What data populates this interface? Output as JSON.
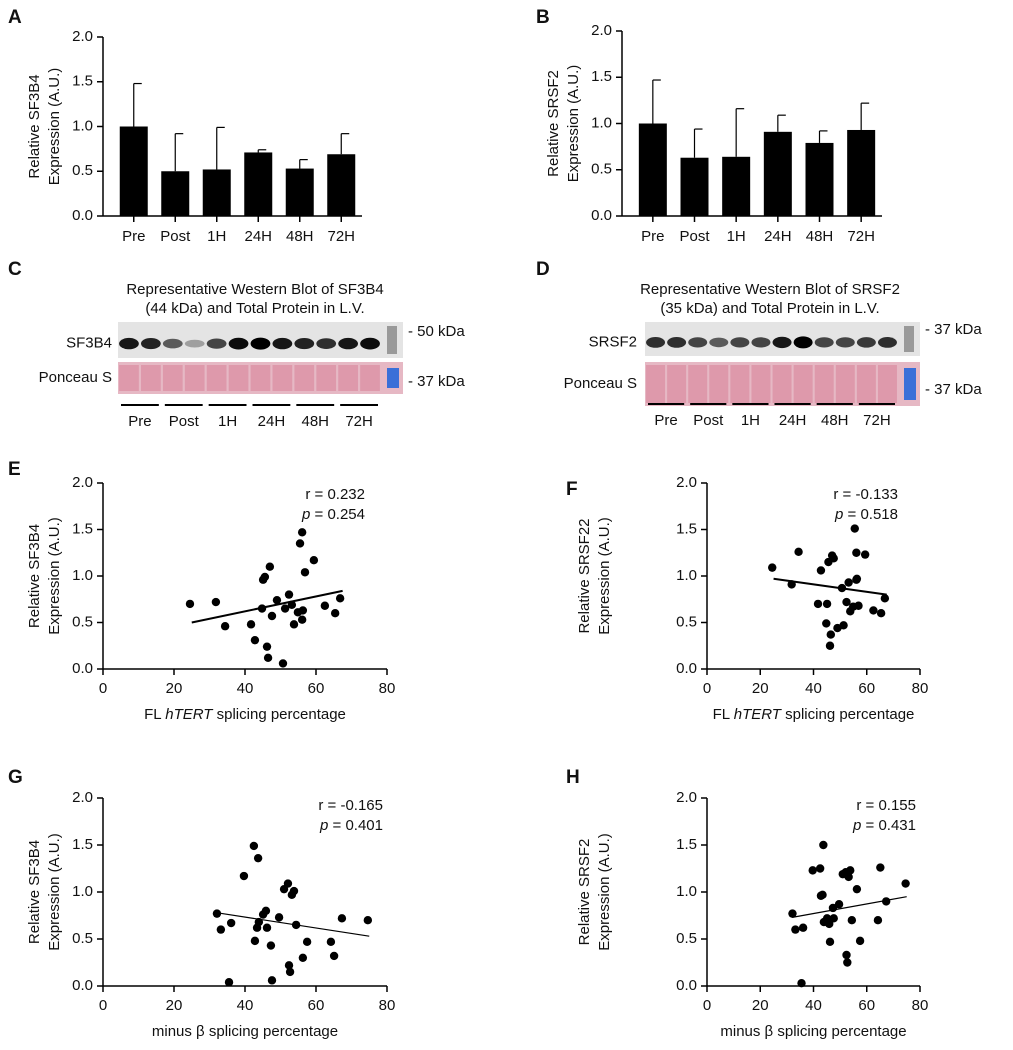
{
  "chart_data": [
    {
      "type": "bar",
      "panel": "A",
      "ylabel": [
        "Relative SF3B4",
        "Expression (A.U.)"
      ],
      "categories": [
        "Pre",
        "Post",
        "1H",
        "24H",
        "48H",
        "72H"
      ],
      "values": [
        1.0,
        0.5,
        0.52,
        0.71,
        0.53,
        0.69
      ],
      "errors": [
        0.48,
        0.42,
        0.47,
        0.03,
        0.1,
        0.23
      ],
      "color": "#000000",
      "ylim": [
        0,
        2
      ],
      "yticks": [
        {
          "value": 0,
          "label": "0.0"
        },
        0.5,
        {
          "value": 1,
          "label": "1.0"
        },
        1.5,
        {
          "value": 2,
          "label": "2.0"
        }
      ]
    },
    {
      "type": "bar",
      "panel": "B",
      "ylabel": [
        "Relative SRSF2",
        "Expression (A.U.)"
      ],
      "categories": [
        "Pre",
        "Post",
        "1H",
        "24H",
        "48H",
        "72H"
      ],
      "values": [
        1.0,
        0.63,
        0.64,
        0.91,
        0.79,
        0.93
      ],
      "errors": [
        0.47,
        0.31,
        0.52,
        0.18,
        0.13,
        0.29
      ],
      "color": "#000000",
      "ylim": [
        0,
        2
      ],
      "yticks": [
        {
          "value": 0,
          "label": "0.0"
        },
        0.5,
        {
          "value": 1,
          "label": "1.0"
        },
        1.5,
        {
          "value": 2,
          "label": "2.0"
        }
      ]
    },
    {
      "type": "scatter",
      "panel": "E",
      "ylabel": [
        "Relative SF3B4",
        "Expression (A.U.)"
      ],
      "xlabel": [
        "FL ",
        "hTERT",
        " splicing percentage"
      ],
      "x": [
        24.5,
        31.8,
        34.4,
        41.7,
        42.8,
        44.8,
        45.1,
        45.6,
        47.0,
        46.2,
        46.5,
        47.6,
        49.0,
        50.7,
        51.3,
        52.4,
        53.2,
        53.8,
        54.9,
        55.5,
        56.1,
        56.1,
        56.3,
        56.9,
        59.4,
        62.5,
        65.4,
        66.8
      ],
      "values": [
        0.7,
        0.72,
        0.46,
        0.48,
        0.31,
        0.65,
        0.96,
        0.99,
        1.1,
        0.24,
        0.12,
        0.57,
        0.74,
        0.06,
        0.65,
        0.8,
        0.69,
        0.48,
        0.61,
        1.35,
        1.47,
        0.53,
        0.63,
        1.04,
        1.17,
        0.68,
        0.6,
        0.76
      ],
      "trendline": {
        "x": [
          25,
          67.5
        ],
        "values": [
          0.5,
          0.84
        ]
      },
      "annotation": {
        "r": "r = 0.232",
        "p_symbol": "p",
        "p": " = 0.254"
      },
      "color": "#000000",
      "xlim": [
        0,
        80
      ],
      "xticks": [
        0,
        20,
        40,
        60,
        80
      ],
      "ylim": [
        0,
        2
      ],
      "yticks": [
        {
          "value": 0,
          "label": "0.0"
        },
        0.5,
        {
          "value": 1,
          "label": "1.0"
        },
        1.5,
        {
          "value": 2,
          "label": "2.0"
        }
      ]
    },
    {
      "type": "scatter",
      "panel": "F",
      "ylabel": [
        "Relative SRSF22",
        "Expression (A.U.)"
      ],
      "xlabel": [
        "FL ",
        "hTERT",
        " splicing percentage"
      ],
      "x": [
        24.5,
        31.8,
        34.4,
        41.7,
        42.8,
        44.8,
        45.1,
        45.6,
        47.0,
        46.2,
        46.5,
        47.6,
        49.0,
        50.7,
        51.3,
        52.4,
        53.2,
        53.8,
        54.9,
        55.5,
        56.1,
        56.1,
        56.3,
        56.9,
        59.4,
        62.5,
        65.4,
        66.8
      ],
      "values": [
        1.09,
        0.91,
        1.26,
        0.7,
        1.06,
        0.49,
        0.7,
        1.15,
        1.22,
        0.25,
        0.37,
        1.19,
        0.44,
        0.87,
        0.47,
        0.72,
        0.93,
        0.62,
        0.67,
        1.51,
        1.25,
        0.96,
        0.97,
        0.68,
        1.23,
        0.63,
        0.6,
        0.76
      ],
      "trendline": {
        "x": [
          25,
          67.5
        ],
        "values": [
          0.97,
          0.8
        ]
      },
      "annotation": {
        "r": "r = -0.133",
        "p_symbol": "p",
        "p": " = 0.518"
      },
      "color": "#000000",
      "xlim": [
        0,
        80
      ],
      "xticks": [
        0,
        20,
        40,
        60,
        80
      ],
      "ylim": [
        0,
        2
      ],
      "yticks": [
        {
          "value": 0,
          "label": "0.0"
        },
        0.5,
        {
          "value": 1,
          "label": "1.0"
        },
        1.5,
        {
          "value": 2,
          "label": "2.0"
        }
      ]
    },
    {
      "type": "scatter",
      "panel": "G",
      "ylabel": [
        "Relative SF3B4",
        "Expression (A.U.)"
      ],
      "xlabel": [
        "minus β splicing percentage"
      ],
      "x": [
        32.1,
        33.2,
        36.1,
        35.5,
        39.7,
        42.5,
        43.7,
        43.4,
        42.8,
        43.9,
        45.1,
        45.9,
        46.2,
        47.3,
        47.6,
        49.6,
        51.0,
        52.1,
        52.4,
        52.7,
        53.2,
        53.8,
        54.4,
        56.3,
        57.5,
        64.2,
        65.1,
        67.3,
        74.6
      ],
      "values": [
        0.77,
        0.6,
        0.67,
        0.04,
        1.17,
        1.49,
        1.36,
        0.62,
        0.48,
        0.68,
        0.76,
        0.8,
        0.62,
        0.43,
        0.06,
        0.73,
        1.03,
        1.09,
        0.22,
        0.15,
        0.97,
        1.01,
        0.65,
        0.3,
        0.47,
        0.47,
        0.32,
        0.72,
        0.7
      ],
      "trendline": {
        "x": [
          32,
          75
        ],
        "values": [
          0.78,
          0.53
        ]
      },
      "annotation": {
        "r": "r = -0.165",
        "p_symbol": "p",
        "p": " = 0.401"
      },
      "color": "#000000",
      "xlim": [
        0,
        80
      ],
      "xticks": [
        0,
        20,
        40,
        60,
        80
      ],
      "ylim": [
        0,
        2
      ],
      "yticks": [
        {
          "value": 0,
          "label": "0.0"
        },
        0.5,
        {
          "value": 1,
          "label": "1.0"
        },
        1.5,
        {
          "value": 2,
          "label": "2.0"
        }
      ]
    },
    {
      "type": "scatter",
      "panel": "H",
      "ylabel": [
        "Relative SRSF2",
        "Expression (A.U.)"
      ],
      "xlabel": [
        "minus β splicing percentage"
      ],
      "x": [
        32.1,
        33.2,
        36.1,
        35.5,
        39.7,
        42.5,
        43.7,
        43.4,
        42.8,
        43.9,
        45.1,
        45.9,
        46.2,
        47.3,
        47.6,
        49.6,
        51.0,
        52.1,
        52.4,
        52.7,
        53.2,
        53.8,
        54.4,
        56.3,
        57.5,
        64.2,
        65.1,
        67.3,
        74.6
      ],
      "values": [
        0.77,
        0.6,
        0.62,
        0.03,
        1.23,
        1.25,
        1.5,
        0.97,
        0.96,
        0.68,
        0.72,
        0.66,
        0.47,
        0.83,
        0.72,
        0.87,
        1.19,
        1.21,
        0.33,
        0.25,
        1.16,
        1.23,
        0.7,
        1.03,
        0.48,
        0.7,
        1.26,
        0.9,
        1.09
      ],
      "trendline": {
        "x": [
          32,
          75
        ],
        "values": [
          0.73,
          0.95
        ]
      },
      "annotation": {
        "r": "r = 0.155",
        "p_symbol": "p",
        "p": " = 0.431"
      },
      "color": "#000000",
      "xlim": [
        0,
        80
      ],
      "xticks": [
        0,
        20,
        40,
        60,
        80
      ],
      "ylim": [
        0,
        2
      ],
      "yticks": [
        {
          "value": 0,
          "label": "0.0"
        },
        0.5,
        {
          "value": 1,
          "label": "1.0"
        },
        1.5,
        {
          "value": 2,
          "label": "2.0"
        }
      ]
    }
  ],
  "blots": [
    {
      "panel": "C",
      "title": [
        "Representative Western Blot of SF3B4",
        "(44 kDa) and Total Protein in L.V."
      ],
      "rows": [
        "SF3B4",
        "Ponceau S"
      ],
      "markers": [
        "- 50 kDa",
        "- 37 kDa"
      ],
      "groups": [
        "Pre",
        "Post",
        "1H",
        "24H",
        "48H",
        "72H"
      ]
    },
    {
      "panel": "D",
      "title": [
        "Representative Western Blot of SRSF2",
        "(35 kDa) and Total Protein in L.V."
      ],
      "rows": [
        "SRSF2",
        "Ponceau S"
      ],
      "markers": [
        "- 37 kDa",
        "- 37 kDa"
      ],
      "groups": [
        "Pre",
        "Post",
        "1H",
        "24H",
        "48H",
        "72H"
      ]
    }
  ]
}
